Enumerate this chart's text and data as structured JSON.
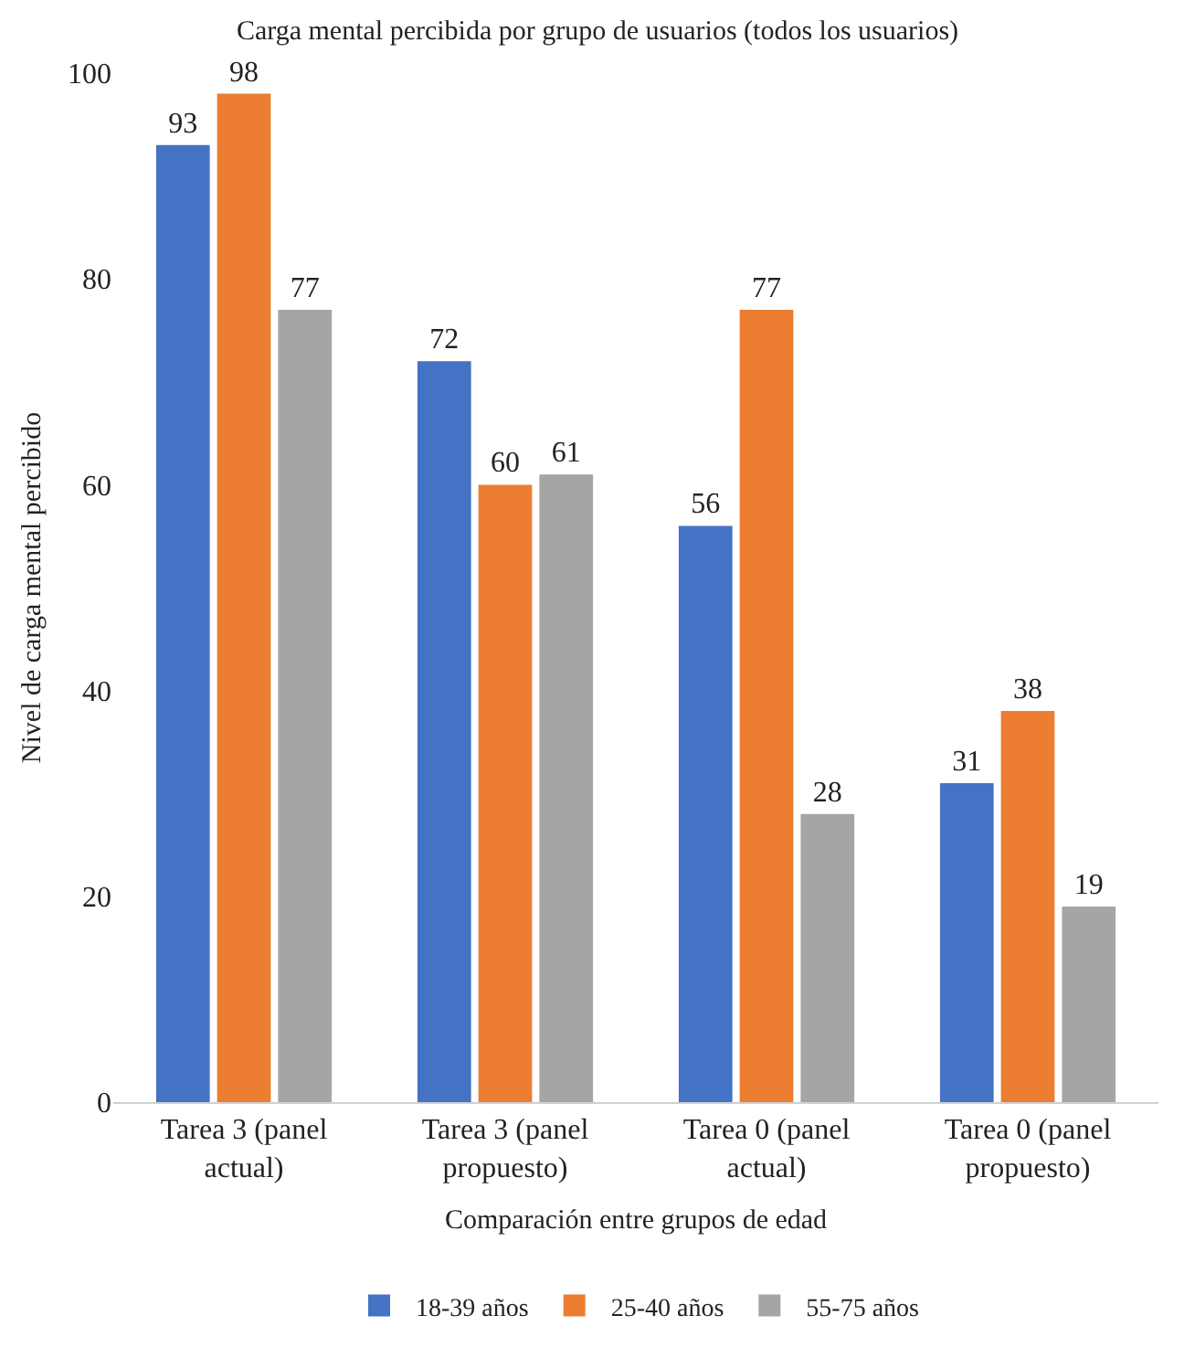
{
  "chart_data": {
    "type": "bar",
    "title": "Carga mental percibida por grupo de usuarios (todos los usuarios)",
    "xlabel": "Comparación entre grupos de edad",
    "ylabel": "Nivel de carga mental percibido",
    "categories": [
      "Tarea 3 (panel actual)",
      "Tarea 3 (panel propuesto)",
      "Tarea 0 (panel actual)",
      "Tarea 0 (panel propuesto)"
    ],
    "series": [
      {
        "name": "18-39 años",
        "color": "#4472c4",
        "values": [
          93,
          72,
          56,
          31
        ]
      },
      {
        "name": "25-40 años",
        "color": "#ed7d31",
        "values": [
          98,
          60,
          77,
          38
        ]
      },
      {
        "name": "55-75 años",
        "color": "#a5a5a5",
        "values": [
          77,
          61,
          28,
          19
        ]
      }
    ],
    "ylim": [
      0,
      100
    ],
    "yticks": [
      0,
      20,
      40,
      60,
      80,
      100
    ],
    "grid": false,
    "legend": "bottom",
    "data_labels": true
  }
}
